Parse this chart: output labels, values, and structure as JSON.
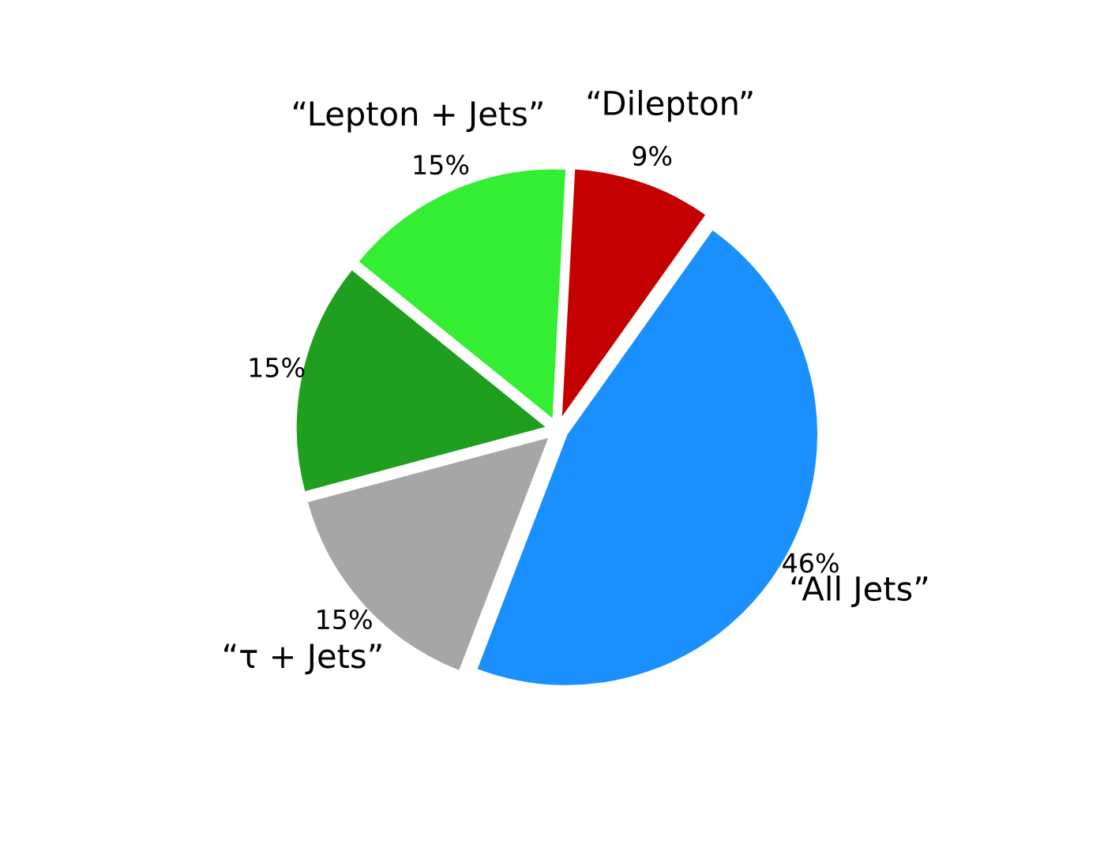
{
  "chart_data": {
    "type": "pie",
    "categories": [
      "“Dilepton”",
      "“All Jets”",
      "“τ + Jets”",
      null,
      "“Lepton + Jets”"
    ],
    "values": [
      9,
      46,
      15,
      15,
      15
    ],
    "value_labels": [
      "9%",
      "46%",
      "15%",
      "15%",
      "15%"
    ],
    "colors": [
      "#c40000",
      "#1a90ff",
      "#a6a6a6",
      "#1f9e1f",
      "#33ee33"
    ],
    "legend": false
  }
}
